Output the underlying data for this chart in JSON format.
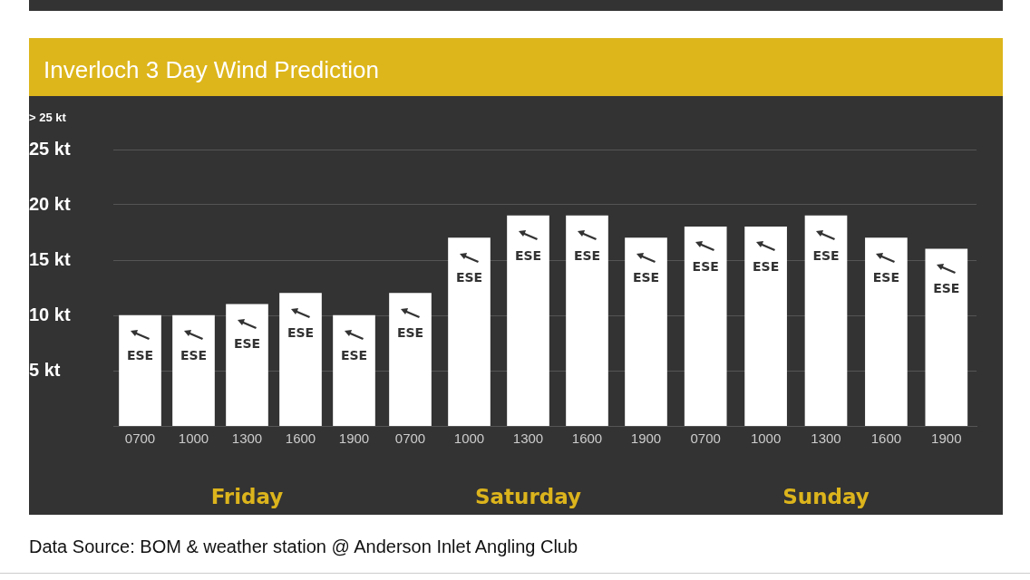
{
  "chart_data": [
    {
      "type": "bar",
      "title": "Inverloch 3 Day Wind Prediction",
      "xlabel": "Friday",
      "ylabel": "> 25 kt",
      "categories": [
        "0700",
        "1000",
        "1300",
        "1600",
        "1900"
      ],
      "series": [
        {
          "color": "#ffffff",
          "values": [
            10,
            10,
            11,
            12,
            10
          ],
          "value_labels": [
            "ESE",
            "ESE",
            "ESE",
            "ESE",
            "ESE"
          ]
        }
      ],
      "ylim": [
        0,
        25
      ],
      "yticks": [
        {
          "value": 5,
          "label": "5 kt"
        },
        {
          "value": 10,
          "label": "10 kt"
        },
        {
          "value": 15,
          "label": "15 kt"
        },
        {
          "value": 20,
          "label": "20 kt"
        },
        {
          "value": 25,
          "label": "25 kt"
        }
      ],
      "grid": "y",
      "legend": false,
      "annotations": [
        "Data Source: BOM & weather station @ Anderson Inlet Angling Club"
      ]
    },
    {
      "type": "bar",
      "xlabel": "Saturday",
      "categories": [
        "0700",
        "1000",
        "1300",
        "1600",
        "1900"
      ],
      "series": [
        {
          "color": "#ffffff",
          "values": [
            12,
            17,
            19,
            19,
            17
          ],
          "value_labels": [
            "ESE",
            "ESE",
            "ESE",
            "ESE",
            "ESE"
          ]
        }
      ],
      "ylim": [
        0,
        25
      ],
      "yticks": [
        5,
        10,
        15,
        20,
        25
      ],
      "grid": "y",
      "legend": false,
      "tick_labels": "x"
    },
    {
      "type": "bar",
      "xlabel": "Sunday",
      "categories": [
        "0700",
        "1000",
        "1300",
        "1600",
        "1900"
      ],
      "series": [
        {
          "color": "#ffffff",
          "values": [
            18,
            18,
            19,
            17,
            16
          ],
          "value_labels": [
            "ESE",
            "ESE",
            "ESE",
            "ESE",
            "ESE"
          ]
        }
      ],
      "ylim": [
        0,
        25
      ],
      "yticks": [
        5,
        10,
        15,
        20,
        25
      ],
      "grid": "y",
      "legend": false,
      "tick_labels": "x"
    }
  ]
}
